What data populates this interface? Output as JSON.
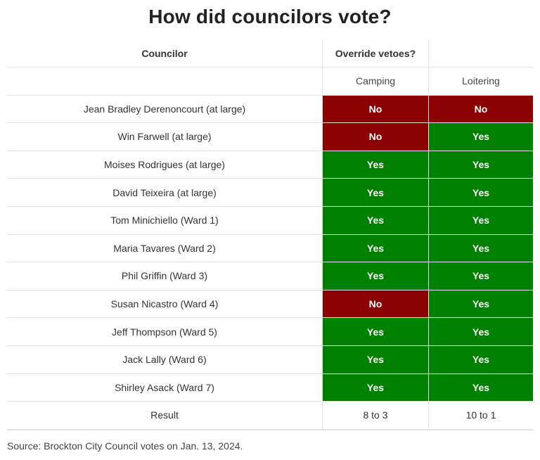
{
  "title": "How did councilors vote?",
  "headers": {
    "councilor": "Councilor",
    "group": "Override vetoes?",
    "camping": "Camping",
    "loitering": "Loitering"
  },
  "colors": {
    "yes": "#008000",
    "no": "#8b0000"
  },
  "rows": [
    {
      "name": "Jean Bradley Derenoncourt (at large)",
      "camping": "No",
      "loitering": "No"
    },
    {
      "name": "Win Farwell (at large)",
      "camping": "No",
      "loitering": "Yes"
    },
    {
      "name": "Moises Rodrigues (at large)",
      "camping": "Yes",
      "loitering": "Yes"
    },
    {
      "name": "David Teixeira (at large)",
      "camping": "Yes",
      "loitering": "Yes"
    },
    {
      "name": "Tom Minichiello (Ward 1)",
      "camping": "Yes",
      "loitering": "Yes"
    },
    {
      "name": "Maria Tavares (Ward 2)",
      "camping": "Yes",
      "loitering": "Yes"
    },
    {
      "name": "Phil Griffin (Ward 3)",
      "camping": "Yes",
      "loitering": "Yes"
    },
    {
      "name": "Susan Nicastro (Ward 4)",
      "camping": "No",
      "loitering": "Yes"
    },
    {
      "name": "Jeff Thompson (Ward 5)",
      "camping": "Yes",
      "loitering": "Yes"
    },
    {
      "name": "Jack Lally (Ward 6)",
      "camping": "Yes",
      "loitering": "Yes"
    },
    {
      "name": "Shirley Asack (Ward 7)",
      "camping": "Yes",
      "loitering": "Yes"
    }
  ],
  "result": {
    "label": "Result",
    "camping": "8 to 3",
    "loitering": "10 to 1"
  },
  "source": "Source: Brockton City Council votes on Jan. 13, 2024."
}
